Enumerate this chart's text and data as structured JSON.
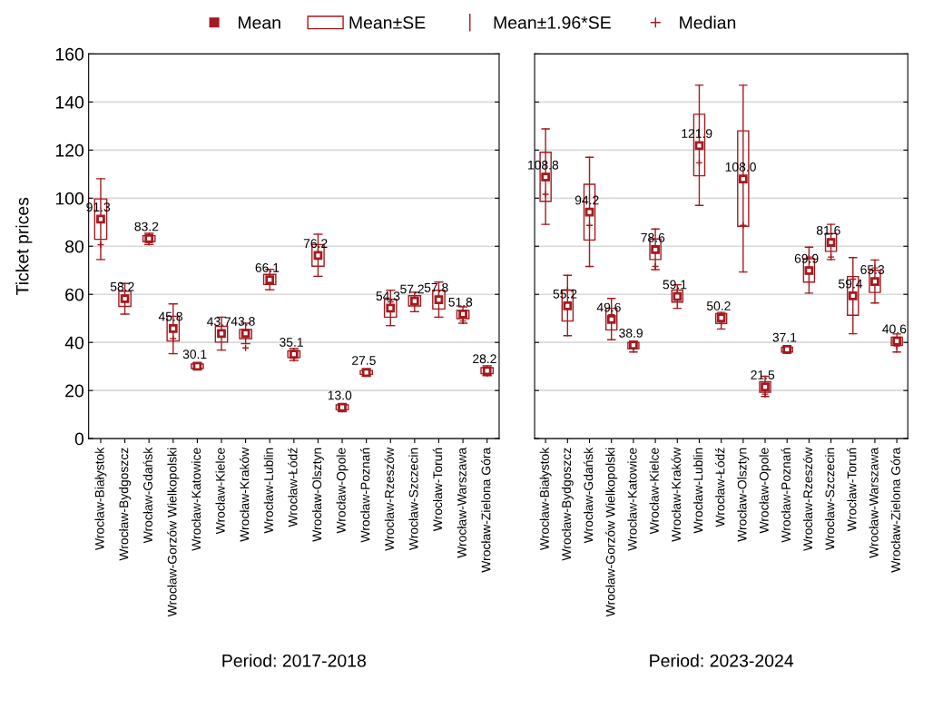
{
  "chart_data": [
    {
      "type": "box",
      "ylabel": "Ticket prices",
      "xlabel": "Period: 2017-2018",
      "ylim": [
        0,
        160
      ],
      "yticks": [
        0,
        20,
        40,
        60,
        80,
        100,
        120,
        140,
        160
      ],
      "grid": "y",
      "legend": "top",
      "annotations": [
        "Mean",
        "Mean±1.96*SE",
        "Median"
      ],
      "categories": [
        "Wrocław-Białystok",
        "Wrocław-Bydgoszcz",
        "Wrocław-Gdańsk",
        "Wrocław-Gorzów Wielkopolski",
        "Wrocław-Katowice",
        "Wrocław-Kielce",
        "Wrocław-Kraków",
        "Wrocław-Lublin",
        "Wrocław-Łódź",
        "Wrocław-Olsztyn",
        "Wrocław-Opole",
        "Wrocław-Poznań",
        "Wrocław-Rzeszów",
        "Wrocław-Szczecin",
        "Wrocław-Toruń",
        "Wrocław-Warszawa",
        "Wrocław-Zielona Góra"
      ],
      "series": [
        {
          "name": "Mean±SE",
          "color": "#a31a1f",
          "boxes": [
            {
              "low": 74.5,
              "q1": 82.9,
              "median": 80.6,
              "q3": 99.7,
              "high": 108.1,
              "mean": 91.3
            },
            {
              "low": 51.8,
              "q1": 55.0,
              "median": 58.5,
              "q3": 61.3,
              "high": 64.5,
              "mean": 58.2
            },
            {
              "low": 80.7,
              "q1": 82.0,
              "median": 81.6,
              "q3": 84.4,
              "high": 85.4,
              "mean": 83.2
            },
            {
              "low": 35.3,
              "q1": 40.6,
              "median": 41.6,
              "q3": 50.9,
              "high": 56.0,
              "mean": 45.8
            },
            {
              "low": 28.8,
              "q1": 29.2,
              "median": 30.0,
              "q3": 31.0,
              "high": 31.5,
              "mean": 30.1
            },
            {
              "low": 36.8,
              "q1": 40.1,
              "median": 44.0,
              "q3": 46.7,
              "high": 50.5,
              "mean": 43.7
            },
            {
              "low": 39.5,
              "q1": 41.6,
              "median": 37.7,
              "q3": 45.4,
              "high": 48.0,
              "mean": 43.8
            },
            {
              "low": 61.9,
              "q1": 64.1,
              "median": 66.5,
              "q3": 68.3,
              "high": 70.4,
              "mean": 66.1
            },
            {
              "low": 32.5,
              "q1": 33.7,
              "median": 33.4,
              "q3": 36.5,
              "high": 37.5,
              "mean": 35.1
            },
            {
              "low": 67.5,
              "q1": 71.7,
              "median": 77.5,
              "q3": 80.7,
              "high": 85.0,
              "mean": 76.2
            },
            {
              "low": 11.2,
              "q1": 12.0,
              "median": 13.0,
              "q3": 14.0,
              "high": 14.5,
              "mean": 13.0
            },
            {
              "low": 26.0,
              "q1": 26.7,
              "median": 27.5,
              "q3": 28.3,
              "high": 29.0,
              "mean": 27.5
            },
            {
              "low": 47.0,
              "q1": 50.5,
              "median": 56.9,
              "q3": 57.9,
              "high": 61.7,
              "mean": 54.3
            },
            {
              "low": 52.8,
              "q1": 55.2,
              "median": 57.5,
              "q3": 59.4,
              "high": 60.9,
              "mean": 57.2
            },
            {
              "low": 50.5,
              "q1": 53.9,
              "median": 58.5,
              "q3": 61.7,
              "high": 65.1,
              "mean": 57.8
            },
            {
              "low": 48.0,
              "q1": 49.9,
              "median": 48.9,
              "q3": 53.3,
              "high": 54.8,
              "mean": 51.8
            },
            {
              "low": 26.2,
              "q1": 27.0,
              "median": 27.1,
              "q3": 29.5,
              "high": 30.3,
              "mean": 28.2
            }
          ],
          "value_labels": [
            "91.3",
            "58.2",
            "83.2",
            "45.8",
            "30.1",
            "43.7",
            "43.8",
            "66.1",
            "35.1",
            "76.2",
            "13.0",
            "27.5",
            "54.3",
            "57.2",
            "57.8",
            "51.8",
            "28.2"
          ]
        }
      ]
    },
    {
      "type": "box",
      "xlabel": "Period: 2023-2024",
      "ylim": [
        0,
        160
      ],
      "yticks": [
        0,
        20,
        40,
        60,
        80,
        100,
        120,
        140,
        160
      ],
      "grid": "y",
      "tick_labels": "x",
      "categories": [
        "Wrocław-Białystok",
        "Wrocław-Bydgoszcz",
        "Wrocław-Gdańsk",
        "Wrocław-Gorzów Wielkopolski",
        "Wrocław-Katowice",
        "Wrocław-Kielce",
        "Wrocław-Kraków",
        "Wrocław-Lublin",
        "Wrocław-Łódź",
        "Wrocław-Olsztyn",
        "Wrocław-Opole",
        "Wrocław-Poznań",
        "Wrocław-Rzeszów",
        "Wrocław-Szczecin",
        "Wrocław-Toruń",
        "Wrocław-Warszawa",
        "Wrocław-Zielona Góra"
      ],
      "series": [
        {
          "color": "#a31a1f",
          "boxes": [
            {
              "low": 89.1,
              "q1": 98.7,
              "median": 101.6,
              "q3": 119.1,
              "high": 128.8,
              "mean": 108.8
            },
            {
              "low": 42.8,
              "q1": 48.9,
              "median": 61.8,
              "q3": 61.8,
              "high": 67.9,
              "mean": 55.2
            },
            {
              "low": 71.6,
              "q1": 82.6,
              "median": 88.7,
              "q3": 105.8,
              "high": 117.0,
              "mean": 94.2
            },
            {
              "low": 41.1,
              "q1": 45.2,
              "median": 51.5,
              "q3": 54.2,
              "high": 58.3,
              "mean": 49.6
            },
            {
              "low": 36.0,
              "q1": 37.4,
              "median": 38.0,
              "q3": 40.0,
              "high": 40.5,
              "mean": 38.9
            },
            {
              "low": 70.3,
              "q1": 74.5,
              "median": 71.6,
              "q3": 83.0,
              "high": 87.2,
              "mean": 78.6
            },
            {
              "low": 54.2,
              "q1": 56.8,
              "median": 60.5,
              "q3": 61.8,
              "high": 64.0,
              "mean": 59.1
            },
            {
              "low": 97.0,
              "q1": 109.3,
              "median": 114.7,
              "q3": 134.9,
              "high": 147.0,
              "mean": 121.9
            },
            {
              "low": 45.6,
              "q1": 47.9,
              "median": 48.5,
              "q3": 52.0,
              "high": 52.5,
              "mean": 50.2
            },
            {
              "low": 69.3,
              "q1": 88.3,
              "median": 88.7,
              "q3": 128.0,
              "high": 147.0,
              "mean": 108.0
            },
            {
              "low": 17.5,
              "q1": 19.3,
              "median": 18.5,
              "q3": 23.7,
              "high": 25.9,
              "mean": 21.5
            },
            {
              "low": 35.5,
              "q1": 36.0,
              "median": 36.5,
              "q3": 38.0,
              "high": 38.5,
              "mean": 37.1
            },
            {
              "low": 60.5,
              "q1": 65.1,
              "median": 75.5,
              "q3": 74.8,
              "high": 79.6,
              "mean": 69.9
            },
            {
              "low": 74.5,
              "q1": 77.9,
              "median": 75.5,
              "q3": 85.3,
              "high": 89.1,
              "mean": 81.6
            },
            {
              "low": 43.6,
              "q1": 51.3,
              "median": 66.3,
              "q3": 67.4,
              "high": 75.3,
              "mean": 59.4
            },
            {
              "low": 56.4,
              "q1": 60.8,
              "median": 71.0,
              "q3": 70.0,
              "high": 74.3,
              "mean": 65.3
            },
            {
              "low": 36.0,
              "q1": 38.7,
              "median": 38.5,
              "q3": 42.2,
              "high": 43.5,
              "mean": 40.6
            }
          ],
          "value_labels": [
            "108.8",
            "55.2",
            "94.2",
            "49.6",
            "38.9",
            "78.6",
            "59.1",
            "121.9",
            "50.2",
            "108.0",
            "21.5",
            "37.1",
            "69.9",
            "81.6",
            "59.4",
            "65.3",
            "40.6"
          ]
        }
      ]
    }
  ]
}
